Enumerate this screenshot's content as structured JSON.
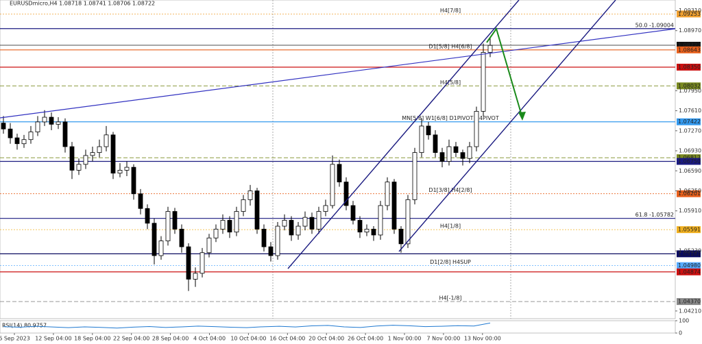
{
  "chart_data": {
    "type": "candlestick",
    "title": "EURUSDmicro,H4  1.08718 1.08741 1.08706 1.08722",
    "ylim": [
      1.0408,
      1.0949
    ],
    "yticks": [
      {
        "value": 1.0931,
        "label": "1.09310"
      },
      {
        "value": 1.0897,
        "label": "1.08970"
      },
      {
        "value": 1.0795,
        "label": "1.07950"
      },
      {
        "value": 1.0761,
        "label": "1.07610"
      },
      {
        "value": 1.0727,
        "label": "1.07270"
      },
      {
        "value": 1.0693,
        "label": "1.06930"
      },
      {
        "value": 1.0659,
        "label": "1.06590"
      },
      {
        "value": 1.0625,
        "label": "1.06250"
      },
      {
        "value": 1.0591,
        "label": "1.05910"
      },
      {
        "value": 1.0523,
        "label": "1.05230"
      },
      {
        "value": 1.0421,
        "label": "1.04210"
      }
    ],
    "time_labels": [
      "6 Sep 2023",
      "12 Sep 04:00",
      "18 Sep 04:00",
      "22 Sep 04:00",
      "28 Sep 04:00",
      "4 Oct 04:00",
      "10 Oct 04:00",
      "16 Oct 04:00",
      "20 Oct 04:00",
      "26 Oct 04:00",
      "1 Nov 00:00",
      "7 Nov 00:00",
      "13 Nov 00:00"
    ],
    "candles": [
      [
        1.074,
        1.0752,
        1.0722,
        1.073
      ],
      [
        1.073,
        1.074,
        1.0705,
        1.0715
      ],
      [
        1.0715,
        1.0722,
        1.0695,
        1.0705
      ],
      [
        1.0705,
        1.072,
        1.0698,
        1.0712
      ],
      [
        1.0712,
        1.0735,
        1.0705,
        1.0725
      ],
      [
        1.0725,
        1.0752,
        1.0718,
        1.0742
      ],
      [
        1.0742,
        1.0762,
        1.0735,
        1.075
      ],
      [
        1.075,
        1.0758,
        1.0728,
        1.0738
      ],
      [
        1.0738,
        1.075,
        1.073,
        1.0742
      ],
      [
        1.0742,
        1.0748,
        1.069,
        1.07
      ],
      [
        1.07,
        1.0708,
        1.0645,
        1.066
      ],
      [
        1.066,
        1.068,
        1.0652,
        1.067
      ],
      [
        1.067,
        1.0695,
        1.0662,
        1.0685
      ],
      [
        1.0685,
        1.07,
        1.0675,
        1.069
      ],
      [
        1.069,
        1.0712,
        1.0682,
        1.07
      ],
      [
        1.07,
        1.0735,
        1.0692,
        1.072
      ],
      [
        1.072,
        1.0725,
        1.0645,
        1.0655
      ],
      [
        1.0655,
        1.0672,
        1.0648,
        1.066
      ],
      [
        1.066,
        1.0675,
        1.065,
        1.0665
      ],
      [
        1.0665,
        1.067,
        1.061,
        1.062
      ],
      [
        1.062,
        1.0628,
        1.0585,
        1.0595
      ],
      [
        1.0595,
        1.0602,
        1.056,
        1.057
      ],
      [
        1.057,
        1.0578,
        1.05,
        1.0515
      ],
      [
        1.0515,
        1.0548,
        1.0508,
        1.054
      ],
      [
        1.054,
        1.0598,
        1.0532,
        1.059
      ],
      [
        1.059,
        1.0596,
        1.0552,
        1.056
      ],
      [
        1.056,
        1.0568,
        1.052,
        1.053
      ],
      [
        1.053,
        1.0536,
        1.0455,
        1.0475
      ],
      [
        1.0475,
        1.0495,
        1.0462,
        1.0485
      ],
      [
        1.0485,
        1.0528,
        1.0478,
        1.052
      ],
      [
        1.052,
        1.0552,
        1.0512,
        1.0545
      ],
      [
        1.0545,
        1.0568,
        1.0538,
        1.056
      ],
      [
        1.056,
        1.0585,
        1.0552,
        1.0575
      ],
      [
        1.0575,
        1.0582,
        1.0545,
        1.0555
      ],
      [
        1.0555,
        1.0598,
        1.0548,
        1.059
      ],
      [
        1.059,
        1.0618,
        1.0582,
        1.061
      ],
      [
        1.061,
        1.0635,
        1.06,
        1.0625
      ],
      [
        1.0625,
        1.063,
        1.0552,
        1.056
      ],
      [
        1.056,
        1.0568,
        1.0522,
        1.053
      ],
      [
        1.053,
        1.0538,
        1.0505,
        1.0515
      ],
      [
        1.0515,
        1.0572,
        1.0508,
        1.0565
      ],
      [
        1.0565,
        1.0585,
        1.0558,
        1.0575
      ],
      [
        1.0575,
        1.0582,
        1.054,
        1.055
      ],
      [
        1.055,
        1.0572,
        1.0542,
        1.0565
      ],
      [
        1.0565,
        1.059,
        1.0558,
        1.058
      ],
      [
        1.058,
        1.0588,
        1.0552,
        1.056
      ],
      [
        1.056,
        1.0598,
        1.0552,
        1.059
      ],
      [
        1.059,
        1.061,
        1.0582,
        1.06
      ],
      [
        1.06,
        1.0685,
        1.0595,
        1.067
      ],
      [
        1.067,
        1.0678,
        1.0632,
        1.064
      ],
      [
        1.064,
        1.0648,
        1.0592,
        1.06
      ],
      [
        1.06,
        1.0608,
        1.0568,
        1.0575
      ],
      [
        1.0575,
        1.0582,
        1.0545,
        1.0555
      ],
      [
        1.0555,
        1.0568,
        1.0548,
        1.056
      ],
      [
        1.056,
        1.0565,
        1.054,
        1.055
      ],
      [
        1.055,
        1.0608,
        1.0542,
        1.06
      ],
      [
        1.06,
        1.0648,
        1.0592,
        1.064
      ],
      [
        1.064,
        1.0645,
        1.0552,
        1.056
      ],
      [
        1.056,
        1.0565,
        1.052,
        1.0535
      ],
      [
        1.0535,
        1.0618,
        1.0528,
        1.061
      ],
      [
        1.061,
        1.0698,
        1.0602,
        1.069
      ],
      [
        1.069,
        1.0748,
        1.0682,
        1.0735
      ],
      [
        1.0735,
        1.0742,
        1.0712,
        1.072
      ],
      [
        1.072,
        1.0728,
        1.0682,
        1.069
      ],
      [
        1.069,
        1.0698,
        1.0665,
        1.0675
      ],
      [
        1.0675,
        1.0712,
        1.0668,
        1.07
      ],
      [
        1.07,
        1.0708,
        1.0682,
        1.069
      ],
      [
        1.069,
        1.0695,
        1.0668,
        1.068
      ],
      [
        1.068,
        1.0708,
        1.0672,
        1.07
      ],
      [
        1.07,
        1.0768,
        1.0692,
        1.076
      ],
      [
        1.076,
        1.0875,
        1.0752,
        1.086
      ],
      [
        1.086,
        1.0885,
        1.0852,
        1.0872
      ]
    ],
    "levels": [
      {
        "price": 1.09253,
        "label": "1.09253",
        "color": "#f0a030",
        "style": "dotted",
        "text": "H4[7/8]",
        "text_pos": "center"
      },
      {
        "price": 1.09004,
        "label": "50.0 -1.09004",
        "color": "#1a1a80",
        "style": "solid",
        "text_pos": "right"
      },
      {
        "price": 1.08722,
        "label": "1.08722",
        "color": "#111111",
        "style": "thin"
      },
      {
        "price": 1.08643,
        "label": "1.08643",
        "color": "#e8601c",
        "style": "solid",
        "text": "D1[5/8] H4[6/8]",
        "text_pos": "center"
      },
      {
        "price": 1.0835,
        "label": "1.08350",
        "color": "#cc1010",
        "style": "solid"
      },
      {
        "price": 1.08032,
        "label": "1.08032",
        "color": "#7a8a20",
        "style": "dashed",
        "text": "H4[5/8]",
        "text_pos": "center"
      },
      {
        "price": 1.07422,
        "label": "1.07422",
        "color": "#3399ee",
        "style": "solid",
        "text": "MN[5/8] W1[6/8] D1PIVOT H4PIVOT",
        "text_pos": "center"
      },
      {
        "price": 1.06812,
        "label": "1.06812",
        "color": "#7a8a20",
        "style": "dashed"
      },
      {
        "price": 1.0675,
        "label": "1.06750",
        "color": "#1a1a80",
        "style": "solid"
      },
      {
        "price": 1.06201,
        "label": "1.06201",
        "color": "#e8601c",
        "style": "dotted",
        "text": "D1[3/8] H4[2/8]",
        "text_pos": "center"
      },
      {
        "price": 1.05782,
        "label": "61.8 -1.05782",
        "color": "#1a1a80",
        "style": "solid",
        "text_pos": "right"
      },
      {
        "price": 1.05591,
        "label": "1.05591",
        "color": "#f0b020",
        "style": "dotted",
        "text": "H4[1/8]",
        "text_pos": "center"
      },
      {
        "price": 1.05181,
        "label": "1.05181",
        "color": "#0a0a60",
        "style": "solid"
      },
      {
        "price": 1.0498,
        "label": "1.04980",
        "color": "#55aaff",
        "style": "dotted",
        "text": "D1[2/8] H4SUP",
        "text_pos": "center"
      },
      {
        "price": 1.04874,
        "label": "1.04874",
        "color": "#cc1010",
        "style": "solid"
      },
      {
        "price": 1.0437,
        "label": "1.04370",
        "color": "#888888",
        "style": "dashed",
        "text": "H4[-1/8]",
        "text_pos": "center"
      }
    ],
    "rsi": {
      "label": "RSI(14) 80.9757",
      "ylim": [
        0,
        100
      ],
      "yticks": [
        100,
        0
      ],
      "color": "#1e78d0",
      "values": [
        52,
        47,
        55,
        49,
        44,
        50,
        46,
        40,
        48,
        53,
        45,
        50,
        56,
        52,
        47,
        44,
        51,
        55,
        49,
        58,
        62,
        50,
        45,
        57,
        63,
        59,
        52,
        55,
        60,
        57,
        81
      ]
    }
  }
}
